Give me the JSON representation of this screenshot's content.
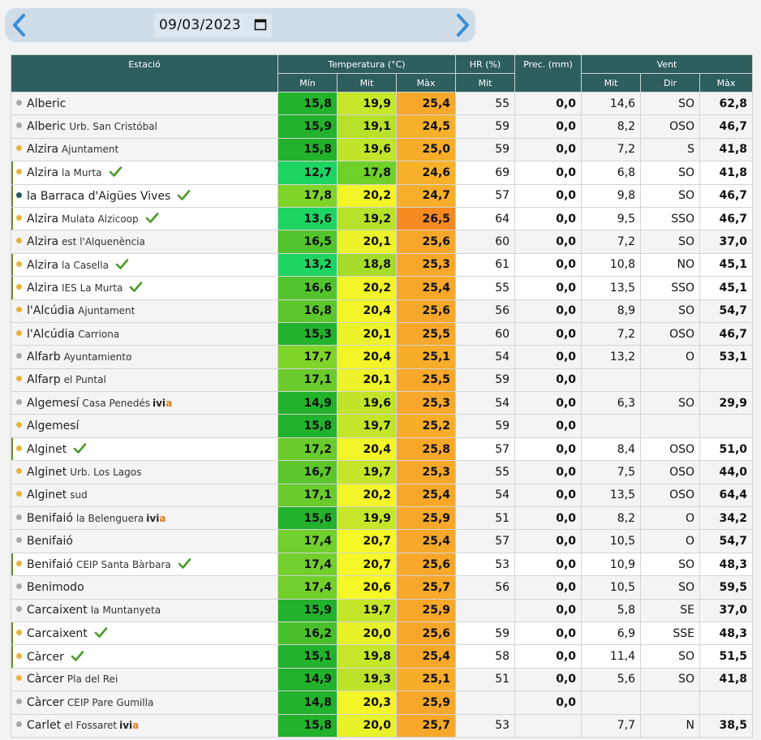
{
  "date": "09/03/2023",
  "header": {
    "station": "Estació",
    "temperature": "Temperatura (°C)",
    "hr": "HR (%)",
    "prec": "Prec. (mm)",
    "wind": "Vent",
    "min": "Mín",
    "mit": "Mit",
    "max": "Màx",
    "hr_mit": "Mit",
    "wind_mit": "Mit",
    "wind_dir": "Dir",
    "wind_max": "Màx"
  },
  "colors": {
    "grey": "#a8a8a8",
    "orange": "#e8b33c",
    "teal": "#1d5c5c",
    "check": "#4a9a2a"
  },
  "rows": [
    {
      "name": "Alberic",
      "sub": "",
      "dot": "grey",
      "check": false,
      "ivia": false,
      "hl": false,
      "tmin": "15,8",
      "tmit": "19,9",
      "tmax": "25,4",
      "cmin": "#22b22c",
      "cmit": "#c7e82a",
      "cmax": "#f7a82a",
      "hr": "55",
      "prec": "0,0",
      "wmit": "14,6",
      "wdir": "SO",
      "wmax": "62,8"
    },
    {
      "name": "Alberic",
      "sub": "Urb. San Cristóbal",
      "dot": "grey",
      "check": false,
      "ivia": false,
      "hl": false,
      "tmin": "15,9",
      "tmit": "19,1",
      "tmax": "24,5",
      "cmin": "#22b22c",
      "cmit": "#b8e22a",
      "cmax": "#f7b02a",
      "hr": "59",
      "prec": "0,0",
      "wmit": "8,2",
      "wdir": "OSO",
      "wmax": "46,7"
    },
    {
      "name": "Alzira",
      "sub": "Ajuntament",
      "dot": "orange",
      "check": false,
      "ivia": false,
      "hl": false,
      "tmin": "15,8",
      "tmit": "19,6",
      "tmax": "25,0",
      "cmin": "#22b22c",
      "cmit": "#c0e52a",
      "cmax": "#f7ac2a",
      "hr": "59",
      "prec": "0,0",
      "wmit": "7,2",
      "wdir": "S",
      "wmax": "41,8"
    },
    {
      "name": "Alzira",
      "sub": "la Murta",
      "dot": "orange",
      "check": true,
      "ivia": false,
      "hl": true,
      "tmin": "12,7",
      "tmit": "17,8",
      "tmax": "24,6",
      "cmin": "#1ed462",
      "cmit": "#6fd12a",
      "cmax": "#f7b02a",
      "hr": "69",
      "prec": "0,0",
      "wmit": "6,8",
      "wdir": "SO",
      "wmax": "41,8"
    },
    {
      "name": "la Barraca d'Aigües Vives",
      "sub": "",
      "dot": "teal",
      "check": true,
      "ivia": false,
      "hl": true,
      "tmin": "17,8",
      "tmit": "20,2",
      "tmax": "24,7",
      "cmin": "#7fd42a",
      "cmit": "#f2f528",
      "cmax": "#f7ae2a",
      "hr": "57",
      "prec": "0,0",
      "wmit": "9,8",
      "wdir": "SO",
      "wmax": "46,7"
    },
    {
      "name": "Alzira",
      "sub": "Mulata Alzicoop",
      "dot": "orange",
      "check": true,
      "ivia": false,
      "hl": true,
      "tmin": "13,6",
      "tmit": "19,2",
      "tmax": "26,5",
      "cmin": "#1ed462",
      "cmit": "#b8e22a",
      "cmax": "#f58a22",
      "hr": "64",
      "prec": "0,0",
      "wmit": "9,5",
      "wdir": "SSO",
      "wmax": "46,7"
    },
    {
      "name": "Alzira",
      "sub": "est l'Alquenència",
      "dot": "orange",
      "check": false,
      "ivia": false,
      "hl": false,
      "tmin": "16,5",
      "tmit": "20,1",
      "tmax": "25,6",
      "cmin": "#52c42c",
      "cmit": "#ecf32a",
      "cmax": "#f7a82a",
      "hr": "60",
      "prec": "0,0",
      "wmit": "7,2",
      "wdir": "SO",
      "wmax": "37,0"
    },
    {
      "name": "Alzira",
      "sub": "la Casella",
      "dot": "orange",
      "check": true,
      "ivia": false,
      "hl": true,
      "tmin": "13,2",
      "tmit": "18,8",
      "tmax": "25,3",
      "cmin": "#1ed462",
      "cmit": "#a8dc2a",
      "cmax": "#f7a82a",
      "hr": "61",
      "prec": "0,0",
      "wmit": "10,8",
      "wdir": "NO",
      "wmax": "45,1"
    },
    {
      "name": "Alzira",
      "sub": "IES La Murta",
      "dot": "orange",
      "check": true,
      "ivia": false,
      "hl": true,
      "tmin": "16,6",
      "tmit": "20,2",
      "tmax": "25,4",
      "cmin": "#52c42c",
      "cmit": "#f2f528",
      "cmax": "#f7a82a",
      "hr": "55",
      "prec": "0,0",
      "wmit": "13,5",
      "wdir": "SSO",
      "wmax": "45,1"
    },
    {
      "name": "l'Alcúdia",
      "sub": "Ajuntament",
      "dot": "orange",
      "check": false,
      "ivia": false,
      "hl": false,
      "tmin": "16,8",
      "tmit": "20,4",
      "tmax": "25,6",
      "cmin": "#5cc72c",
      "cmit": "#f2f528",
      "cmax": "#f7a82a",
      "hr": "56",
      "prec": "0,0",
      "wmit": "8,9",
      "wdir": "SO",
      "wmax": "54,7"
    },
    {
      "name": "l'Alcúdia",
      "sub": "Carriona",
      "dot": "orange",
      "check": false,
      "ivia": false,
      "hl": false,
      "tmin": "15,3",
      "tmit": "20,1",
      "tmax": "25,5",
      "cmin": "#22b22c",
      "cmit": "#ecf32a",
      "cmax": "#f7a82a",
      "hr": "60",
      "prec": "0,0",
      "wmit": "7,2",
      "wdir": "OSO",
      "wmax": "46,7"
    },
    {
      "name": "Alfarb",
      "sub": "Ayuntamiento",
      "dot": "grey",
      "check": false,
      "ivia": false,
      "hl": false,
      "tmin": "17,7",
      "tmit": "20,4",
      "tmax": "25,1",
      "cmin": "#7fd42a",
      "cmit": "#f2f528",
      "cmax": "#f7ac2a",
      "hr": "54",
      "prec": "0,0",
      "wmit": "13,2",
      "wdir": "O",
      "wmax": "53,1"
    },
    {
      "name": "Alfarp",
      "sub": "el Puntal",
      "dot": "orange",
      "check": false,
      "ivia": false,
      "hl": false,
      "tmin": "17,1",
      "tmit": "20,1",
      "tmax": "25,5",
      "cmin": "#6acc2c",
      "cmit": "#ecf32a",
      "cmax": "#f7a82a",
      "hr": "59",
      "prec": "0,0",
      "wmit": "",
      "wdir": "",
      "wmax": ""
    },
    {
      "name": "Algemesí",
      "sub": "Casa Penedés",
      "dot": "grey",
      "check": false,
      "ivia": true,
      "hl": false,
      "tmin": "14,9",
      "tmit": "19,6",
      "tmax": "25,3",
      "cmin": "#22b22c",
      "cmit": "#c0e52a",
      "cmax": "#f7a82a",
      "hr": "54",
      "prec": "0,0",
      "wmit": "6,3",
      "wdir": "SO",
      "wmax": "29,9"
    },
    {
      "name": "Algemesí",
      "sub": "",
      "dot": "orange",
      "check": false,
      "ivia": false,
      "hl": false,
      "tmin": "15,8",
      "tmit": "19,7",
      "tmax": "25,2",
      "cmin": "#22b22c",
      "cmit": "#c4e62a",
      "cmax": "#f7ac2a",
      "hr": "59",
      "prec": "0,0",
      "wmit": "",
      "wdir": "",
      "wmax": ""
    },
    {
      "name": "Alginet",
      "sub": "",
      "dot": "orange",
      "check": true,
      "ivia": false,
      "hl": true,
      "tmin": "17,2",
      "tmit": "20,4",
      "tmax": "25,8",
      "cmin": "#6acc2c",
      "cmit": "#f2f528",
      "cmax": "#f7a82a",
      "hr": "57",
      "prec": "0,0",
      "wmit": "8,4",
      "wdir": "OSO",
      "wmax": "51,0"
    },
    {
      "name": "Alginet",
      "sub": "Urb. Los Lagos",
      "dot": "orange",
      "check": false,
      "ivia": false,
      "hl": false,
      "tmin": "16,7",
      "tmit": "19,7",
      "tmax": "25,3",
      "cmin": "#5cc72c",
      "cmit": "#c4e62a",
      "cmax": "#f7a82a",
      "hr": "55",
      "prec": "0,0",
      "wmit": "7,5",
      "wdir": "OSO",
      "wmax": "44,0"
    },
    {
      "name": "Alginet",
      "sub": "sud",
      "dot": "orange",
      "check": false,
      "ivia": false,
      "hl": false,
      "tmin": "17,1",
      "tmit": "20,2",
      "tmax": "25,4",
      "cmin": "#6acc2c",
      "cmit": "#f2f528",
      "cmax": "#f7a82a",
      "hr": "54",
      "prec": "0,0",
      "wmit": "13,5",
      "wdir": "OSO",
      "wmax": "64,4"
    },
    {
      "name": "Benifaió",
      "sub": "la Belenguera",
      "dot": "grey",
      "check": false,
      "ivia": true,
      "hl": false,
      "tmin": "15,6",
      "tmit": "19,9",
      "tmax": "25,9",
      "cmin": "#22b22c",
      "cmit": "#c7e82a",
      "cmax": "#f7a82a",
      "hr": "51",
      "prec": "0,0",
      "wmit": "8,2",
      "wdir": "O",
      "wmax": "34,2"
    },
    {
      "name": "Benifaió",
      "sub": "",
      "dot": "grey",
      "check": false,
      "ivia": false,
      "hl": false,
      "tmin": "17,4",
      "tmit": "20,7",
      "tmax": "25,4",
      "cmin": "#72cf2c",
      "cmit": "#f5f726",
      "cmax": "#f7a82a",
      "hr": "57",
      "prec": "0,0",
      "wmit": "10,5",
      "wdir": "O",
      "wmax": "54,7"
    },
    {
      "name": "Benifaió",
      "sub": "CEIP Santa Bàrbara",
      "dot": "orange",
      "check": true,
      "ivia": false,
      "hl": true,
      "tmin": "17,4",
      "tmit": "20,7",
      "tmax": "25,6",
      "cmin": "#72cf2c",
      "cmit": "#f5f726",
      "cmax": "#f7a82a",
      "hr": "53",
      "prec": "0,0",
      "wmit": "10,9",
      "wdir": "SO",
      "wmax": "48,3"
    },
    {
      "name": "Benimodo",
      "sub": "",
      "dot": "grey",
      "check": false,
      "ivia": false,
      "hl": false,
      "tmin": "17,4",
      "tmit": "20,6",
      "tmax": "25,7",
      "cmin": "#72cf2c",
      "cmit": "#f5f726",
      "cmax": "#f7a82a",
      "hr": "56",
      "prec": "0,0",
      "wmit": "10,5",
      "wdir": "SO",
      "wmax": "59,5"
    },
    {
      "name": "Carcaixent",
      "sub": "la Muntanyeta",
      "dot": "grey",
      "check": false,
      "ivia": false,
      "hl": false,
      "tmin": "15,9",
      "tmit": "19,7",
      "tmax": "25,9",
      "cmin": "#22b22c",
      "cmit": "#c4e62a",
      "cmax": "#f7a82a",
      "hr": "",
      "prec": "0,0",
      "wmit": "5,8",
      "wdir": "SE",
      "wmax": "37,0"
    },
    {
      "name": "Carcaixent",
      "sub": "",
      "dot": "orange",
      "check": true,
      "ivia": false,
      "hl": true,
      "tmin": "16,2",
      "tmit": "20,0",
      "tmax": "25,6",
      "cmin": "#48c02c",
      "cmit": "#e8f22a",
      "cmax": "#f7a82a",
      "hr": "59",
      "prec": "0,0",
      "wmit": "6,9",
      "wdir": "SSE",
      "wmax": "48,3"
    },
    {
      "name": "Càrcer",
      "sub": "",
      "dot": "orange",
      "check": true,
      "ivia": false,
      "hl": true,
      "tmin": "15,1",
      "tmit": "19,8",
      "tmax": "25,4",
      "cmin": "#22b22c",
      "cmit": "#c7e82a",
      "cmax": "#f7a82a",
      "hr": "58",
      "prec": "0,0",
      "wmit": "11,4",
      "wdir": "SO",
      "wmax": "51,5"
    },
    {
      "name": "Càrcer",
      "sub": "Pla del Rei",
      "dot": "orange",
      "check": false,
      "ivia": false,
      "hl": false,
      "tmin": "14,9",
      "tmit": "19,3",
      "tmax": "25,1",
      "cmin": "#22b22c",
      "cmit": "#bce32a",
      "cmax": "#f7ac2a",
      "hr": "51",
      "prec": "0,0",
      "wmit": "5,6",
      "wdir": "SO",
      "wmax": "41,8"
    },
    {
      "name": "Càrcer",
      "sub": "CEIP Pare Gumilla",
      "dot": "grey",
      "check": false,
      "ivia": false,
      "hl": false,
      "tmin": "14,8",
      "tmit": "20,3",
      "tmax": "25,9",
      "cmin": "#22b22c",
      "cmit": "#f2f528",
      "cmax": "#f7a82a",
      "hr": "",
      "prec": "0,0",
      "wmit": "",
      "wdir": "",
      "wmax": ""
    },
    {
      "name": "Carlet",
      "sub": "el Fossaret",
      "dot": "grey",
      "check": false,
      "ivia": true,
      "hl": false,
      "tmin": "15,8",
      "tmit": "20,0",
      "tmax": "25,7",
      "cmin": "#22b22c",
      "cmit": "#e8f22a",
      "cmax": "#f7a82a",
      "hr": "53",
      "prec": "",
      "wmit": "7,7",
      "wdir": "N",
      "wmax": "38,5"
    }
  ],
  "ivia_label": {
    "pre": "ivi",
    "post": "a"
  }
}
